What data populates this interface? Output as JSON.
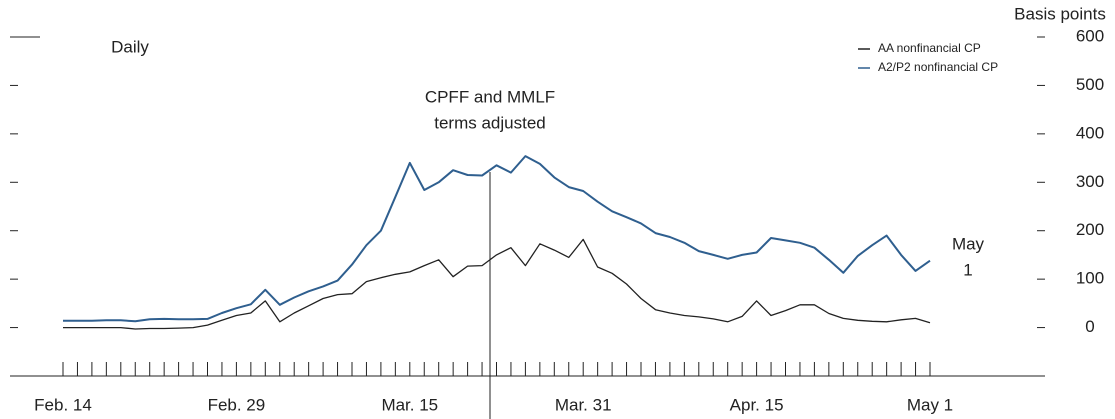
{
  "chart_data": {
    "type": "line",
    "ylabel": "Basis points",
    "annotations": [
      "Daily",
      "CPFF and MMLF",
      "terms adjusted",
      "May",
      "1"
    ],
    "categories": [
      "Feb. 14",
      null,
      null,
      null,
      null,
      null,
      null,
      null,
      null,
      null,
      null,
      null,
      "Feb. 29",
      null,
      null,
      null,
      null,
      null,
      null,
      null,
      null,
      null,
      null,
      null,
      "Mar. 15",
      null,
      null,
      null,
      null,
      null,
      null,
      null,
      null,
      null,
      null,
      null,
      "Mar. 31",
      null,
      null,
      null,
      null,
      null,
      null,
      null,
      null,
      null,
      null,
      null,
      "Apr. 15",
      null,
      null,
      null,
      null,
      null,
      null,
      null,
      null,
      null,
      null,
      null,
      "May 1"
    ],
    "series": [
      {
        "name": "AA nonfinancial CP",
        "color": "#222222",
        "values": [
          0,
          0,
          0,
          0,
          0,
          -3,
          -2,
          -2,
          -1,
          0,
          5,
          15,
          25,
          30,
          55,
          12,
          30,
          45,
          60,
          68,
          70,
          95,
          103,
          110,
          115,
          128,
          140,
          105,
          127,
          128,
          150,
          165,
          128,
          173,
          160,
          145,
          182,
          125,
          112,
          90,
          60,
          37,
          30,
          25,
          22,
          18,
          12,
          23,
          55,
          25,
          35,
          47,
          47,
          29,
          19,
          15,
          13,
          12,
          16,
          19,
          10
        ]
      },
      {
        "name": "A2/P2 nonfinancial CP",
        "color": "#2f5f8f",
        "values": [
          14,
          14,
          14,
          15,
          15,
          13,
          17,
          18,
          17,
          17,
          18,
          30,
          40,
          48,
          78,
          47,
          62,
          75,
          85,
          97,
          130,
          170,
          200,
          270,
          340,
          284,
          300,
          325,
          315,
          314,
          335,
          320,
          354,
          338,
          310,
          290,
          282,
          260,
          240,
          228,
          215,
          195,
          187,
          175,
          158,
          150,
          142,
          150,
          155,
          185,
          180,
          175,
          165,
          140,
          113,
          148,
          170,
          190,
          150,
          117,
          138
        ]
      }
    ],
    "ylim": [
      -100,
      600
    ],
    "yticks": [
      0,
      100,
      200,
      300,
      400,
      500,
      600
    ],
    "legend": "upper right",
    "grid": false
  }
}
